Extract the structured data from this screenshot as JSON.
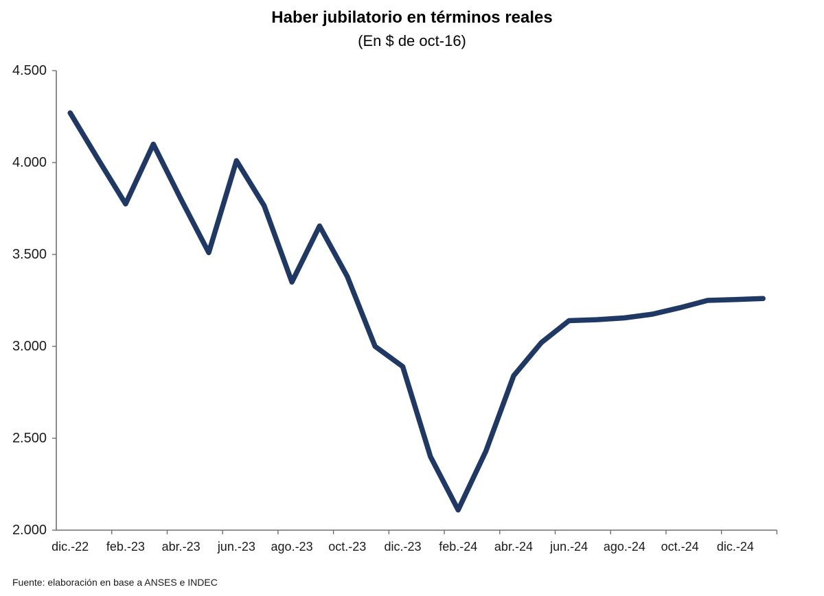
{
  "chart": {
    "title": "Haber jubilatorio en términos reales",
    "subtitle": "(En $ de oct-16)",
    "source": "Fuente: elaboración en base a ANSES e INDEC"
  },
  "chart_data": {
    "type": "line",
    "title": "Haber jubilatorio en términos reales",
    "subtitle": "(En $ de oct-16)",
    "x": [
      "dic.-22",
      "ene.-23",
      "feb.-23",
      "mar.-23",
      "abr.-23",
      "may.-23",
      "jun.-23",
      "jul.-23",
      "ago.-23",
      "sep.-23",
      "oct.-23",
      "nov.-23",
      "dic.-23",
      "ene.-24",
      "feb.-24",
      "mar.-24",
      "abr.-24",
      "may.-24",
      "jun.-24",
      "jul.-24",
      "ago.-24",
      "sep.-24",
      "oct.-24",
      "nov.-24",
      "dic.-24",
      "ene.-25"
    ],
    "values": [
      4270,
      4020,
      3775,
      4100,
      3800,
      3510,
      4010,
      3765,
      3350,
      3655,
      3380,
      3000,
      2890,
      2400,
      2110,
      2430,
      2840,
      3020,
      3140,
      3145,
      3155,
      3175,
      3210,
      3250,
      3255,
      3260
    ],
    "x_tick_labels": [
      "dic.-22",
      "feb.-23",
      "abr.-23",
      "jun.-23",
      "ago.-23",
      "oct.-23",
      "dic.-23",
      "feb.-24",
      "abr.-24",
      "jun.-24",
      "ago.-24",
      "oct.-24",
      "dic.-24"
    ],
    "x_label_interval": 2,
    "ylim": [
      2000,
      4500
    ],
    "y_ticks": [
      {
        "label": "2.000",
        "value": 2000
      },
      {
        "label": "2.500",
        "value": 2500
      },
      {
        "label": "3.000",
        "value": 3000
      },
      {
        "label": "3.500",
        "value": 3500
      },
      {
        "label": "4.000",
        "value": 4000
      },
      {
        "label": "4.500",
        "value": 4500
      }
    ],
    "grid": false,
    "legend": false,
    "line_color": "#1F3864",
    "axis_color": "#6e6e6e",
    "source": "Fuente: elaboración en base a ANSES e INDEC"
  }
}
